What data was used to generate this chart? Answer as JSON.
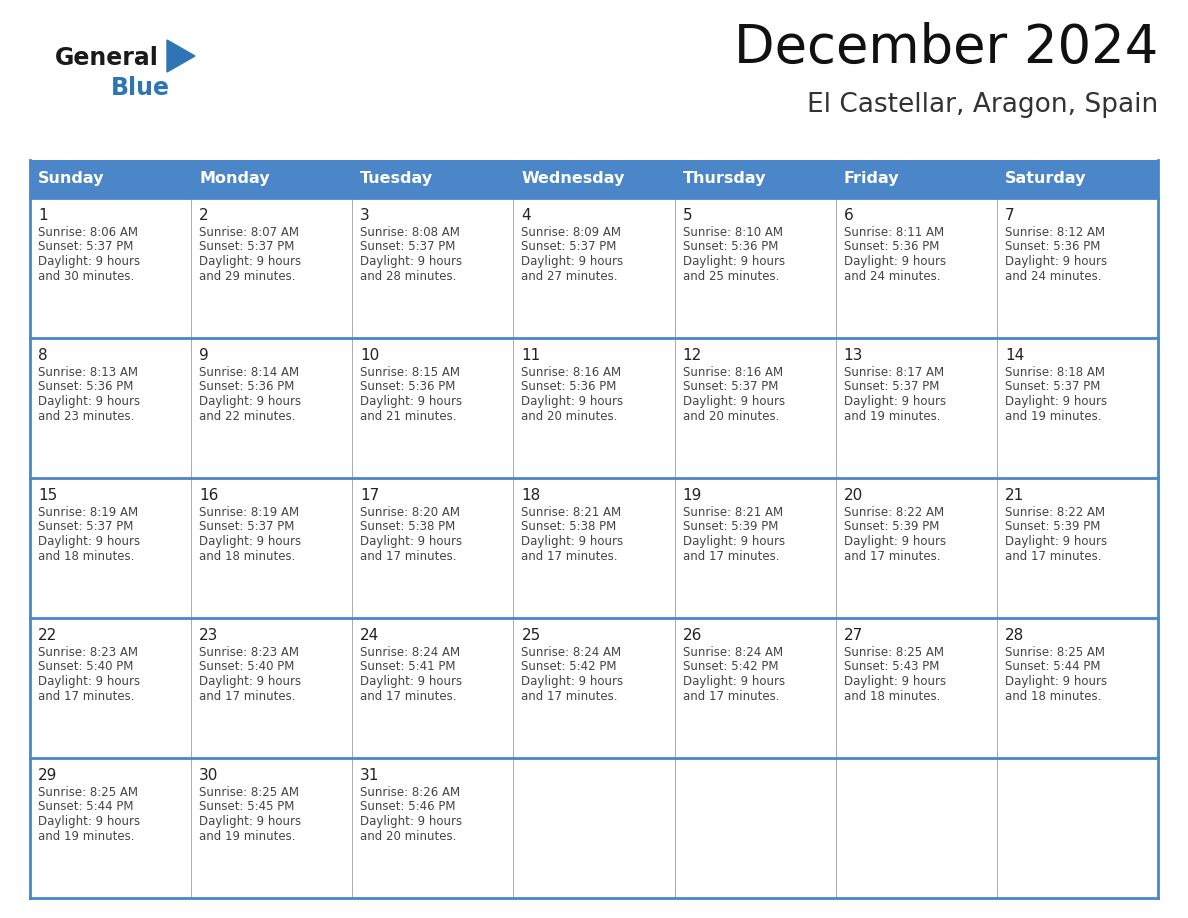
{
  "title": "December 2024",
  "subtitle": "El Castellar, Aragon, Spain",
  "days_of_week": [
    "Sunday",
    "Monday",
    "Tuesday",
    "Wednesday",
    "Thursday",
    "Friday",
    "Saturday"
  ],
  "header_bg": "#4A86C8",
  "header_text": "#FFFFFF",
  "cell_border_blue": "#4A86C8",
  "cell_border_light": "#AAAAAA",
  "day_num_color": "#222222",
  "cell_text_color": "#444444",
  "bg_color": "#FFFFFF",
  "title_color": "#111111",
  "subtitle_color": "#333333",
  "general_color": "#1a1a1a",
  "blue_color": "#2E75B6",
  "weeks": [
    [
      {
        "day": 1,
        "sunrise": "8:06 AM",
        "sunset": "5:37 PM",
        "daylight_line1": "9 hours",
        "daylight_line2": "and 30 minutes."
      },
      {
        "day": 2,
        "sunrise": "8:07 AM",
        "sunset": "5:37 PM",
        "daylight_line1": "9 hours",
        "daylight_line2": "and 29 minutes."
      },
      {
        "day": 3,
        "sunrise": "8:08 AM",
        "sunset": "5:37 PM",
        "daylight_line1": "9 hours",
        "daylight_line2": "and 28 minutes."
      },
      {
        "day": 4,
        "sunrise": "8:09 AM",
        "sunset": "5:37 PM",
        "daylight_line1": "9 hours",
        "daylight_line2": "and 27 minutes."
      },
      {
        "day": 5,
        "sunrise": "8:10 AM",
        "sunset": "5:36 PM",
        "daylight_line1": "9 hours",
        "daylight_line2": "and 25 minutes."
      },
      {
        "day": 6,
        "sunrise": "8:11 AM",
        "sunset": "5:36 PM",
        "daylight_line1": "9 hours",
        "daylight_line2": "and 24 minutes."
      },
      {
        "day": 7,
        "sunrise": "8:12 AM",
        "sunset": "5:36 PM",
        "daylight_line1": "9 hours",
        "daylight_line2": "and 24 minutes."
      }
    ],
    [
      {
        "day": 8,
        "sunrise": "8:13 AM",
        "sunset": "5:36 PM",
        "daylight_line1": "9 hours",
        "daylight_line2": "and 23 minutes."
      },
      {
        "day": 9,
        "sunrise": "8:14 AM",
        "sunset": "5:36 PM",
        "daylight_line1": "9 hours",
        "daylight_line2": "and 22 minutes."
      },
      {
        "day": 10,
        "sunrise": "8:15 AM",
        "sunset": "5:36 PM",
        "daylight_line1": "9 hours",
        "daylight_line2": "and 21 minutes."
      },
      {
        "day": 11,
        "sunrise": "8:16 AM",
        "sunset": "5:36 PM",
        "daylight_line1": "9 hours",
        "daylight_line2": "and 20 minutes."
      },
      {
        "day": 12,
        "sunrise": "8:16 AM",
        "sunset": "5:37 PM",
        "daylight_line1": "9 hours",
        "daylight_line2": "and 20 minutes."
      },
      {
        "day": 13,
        "sunrise": "8:17 AM",
        "sunset": "5:37 PM",
        "daylight_line1": "9 hours",
        "daylight_line2": "and 19 minutes."
      },
      {
        "day": 14,
        "sunrise": "8:18 AM",
        "sunset": "5:37 PM",
        "daylight_line1": "9 hours",
        "daylight_line2": "and 19 minutes."
      }
    ],
    [
      {
        "day": 15,
        "sunrise": "8:19 AM",
        "sunset": "5:37 PM",
        "daylight_line1": "9 hours",
        "daylight_line2": "and 18 minutes."
      },
      {
        "day": 16,
        "sunrise": "8:19 AM",
        "sunset": "5:37 PM",
        "daylight_line1": "9 hours",
        "daylight_line2": "and 18 minutes."
      },
      {
        "day": 17,
        "sunrise": "8:20 AM",
        "sunset": "5:38 PM",
        "daylight_line1": "9 hours",
        "daylight_line2": "and 17 minutes."
      },
      {
        "day": 18,
        "sunrise": "8:21 AM",
        "sunset": "5:38 PM",
        "daylight_line1": "9 hours",
        "daylight_line2": "and 17 minutes."
      },
      {
        "day": 19,
        "sunrise": "8:21 AM",
        "sunset": "5:39 PM",
        "daylight_line1": "9 hours",
        "daylight_line2": "and 17 minutes."
      },
      {
        "day": 20,
        "sunrise": "8:22 AM",
        "sunset": "5:39 PM",
        "daylight_line1": "9 hours",
        "daylight_line2": "and 17 minutes."
      },
      {
        "day": 21,
        "sunrise": "8:22 AM",
        "sunset": "5:39 PM",
        "daylight_line1": "9 hours",
        "daylight_line2": "and 17 minutes."
      }
    ],
    [
      {
        "day": 22,
        "sunrise": "8:23 AM",
        "sunset": "5:40 PM",
        "daylight_line1": "9 hours",
        "daylight_line2": "and 17 minutes."
      },
      {
        "day": 23,
        "sunrise": "8:23 AM",
        "sunset": "5:40 PM",
        "daylight_line1": "9 hours",
        "daylight_line2": "and 17 minutes."
      },
      {
        "day": 24,
        "sunrise": "8:24 AM",
        "sunset": "5:41 PM",
        "daylight_line1": "9 hours",
        "daylight_line2": "and 17 minutes."
      },
      {
        "day": 25,
        "sunrise": "8:24 AM",
        "sunset": "5:42 PM",
        "daylight_line1": "9 hours",
        "daylight_line2": "and 17 minutes."
      },
      {
        "day": 26,
        "sunrise": "8:24 AM",
        "sunset": "5:42 PM",
        "daylight_line1": "9 hours",
        "daylight_line2": "and 17 minutes."
      },
      {
        "day": 27,
        "sunrise": "8:25 AM",
        "sunset": "5:43 PM",
        "daylight_line1": "9 hours",
        "daylight_line2": "and 18 minutes."
      },
      {
        "day": 28,
        "sunrise": "8:25 AM",
        "sunset": "5:44 PM",
        "daylight_line1": "9 hours",
        "daylight_line2": "and 18 minutes."
      }
    ],
    [
      {
        "day": 29,
        "sunrise": "8:25 AM",
        "sunset": "5:44 PM",
        "daylight_line1": "9 hours",
        "daylight_line2": "and 19 minutes."
      },
      {
        "day": 30,
        "sunrise": "8:25 AM",
        "sunset": "5:45 PM",
        "daylight_line1": "9 hours",
        "daylight_line2": "and 19 minutes."
      },
      {
        "day": 31,
        "sunrise": "8:26 AM",
        "sunset": "5:46 PM",
        "daylight_line1": "9 hours",
        "daylight_line2": "and 20 minutes."
      },
      null,
      null,
      null,
      null
    ]
  ],
  "logo_general_fontsize": 17,
  "logo_blue_fontsize": 17,
  "title_fontsize": 38,
  "subtitle_fontsize": 19,
  "header_fontsize": 11.5,
  "day_num_fontsize": 11,
  "cell_text_fontsize": 8.5
}
